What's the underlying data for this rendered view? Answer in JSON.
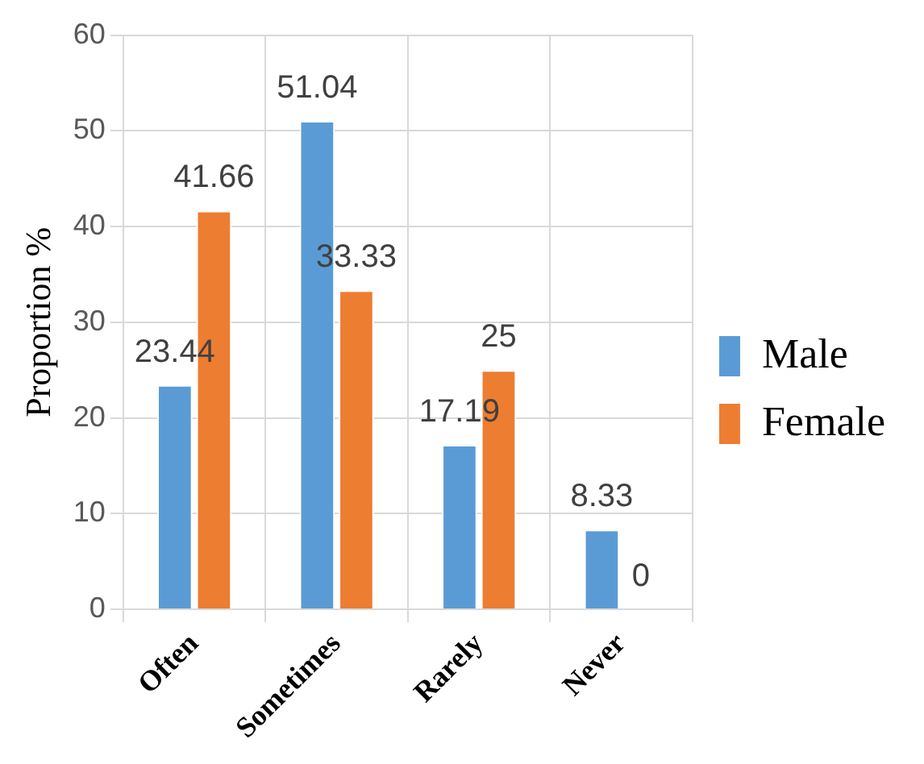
{
  "chart_data": {
    "type": "bar",
    "ylabel": "Proportion %",
    "categories": [
      "Often",
      "Sometimes",
      "Rarely",
      "Never"
    ],
    "series": [
      {
        "name": "Male",
        "color": "#5b9bd5",
        "values": [
          23.44,
          51.04,
          17.19,
          8.33
        ]
      },
      {
        "name": "Female",
        "color": "#ed7d31",
        "values": [
          41.66,
          33.33,
          25,
          0
        ]
      }
    ],
    "ylim": [
      0,
      60
    ],
    "yticks": [
      0,
      10,
      20,
      30,
      40,
      50,
      60
    ],
    "grid": true,
    "legend": "right",
    "data_labels": true
  }
}
